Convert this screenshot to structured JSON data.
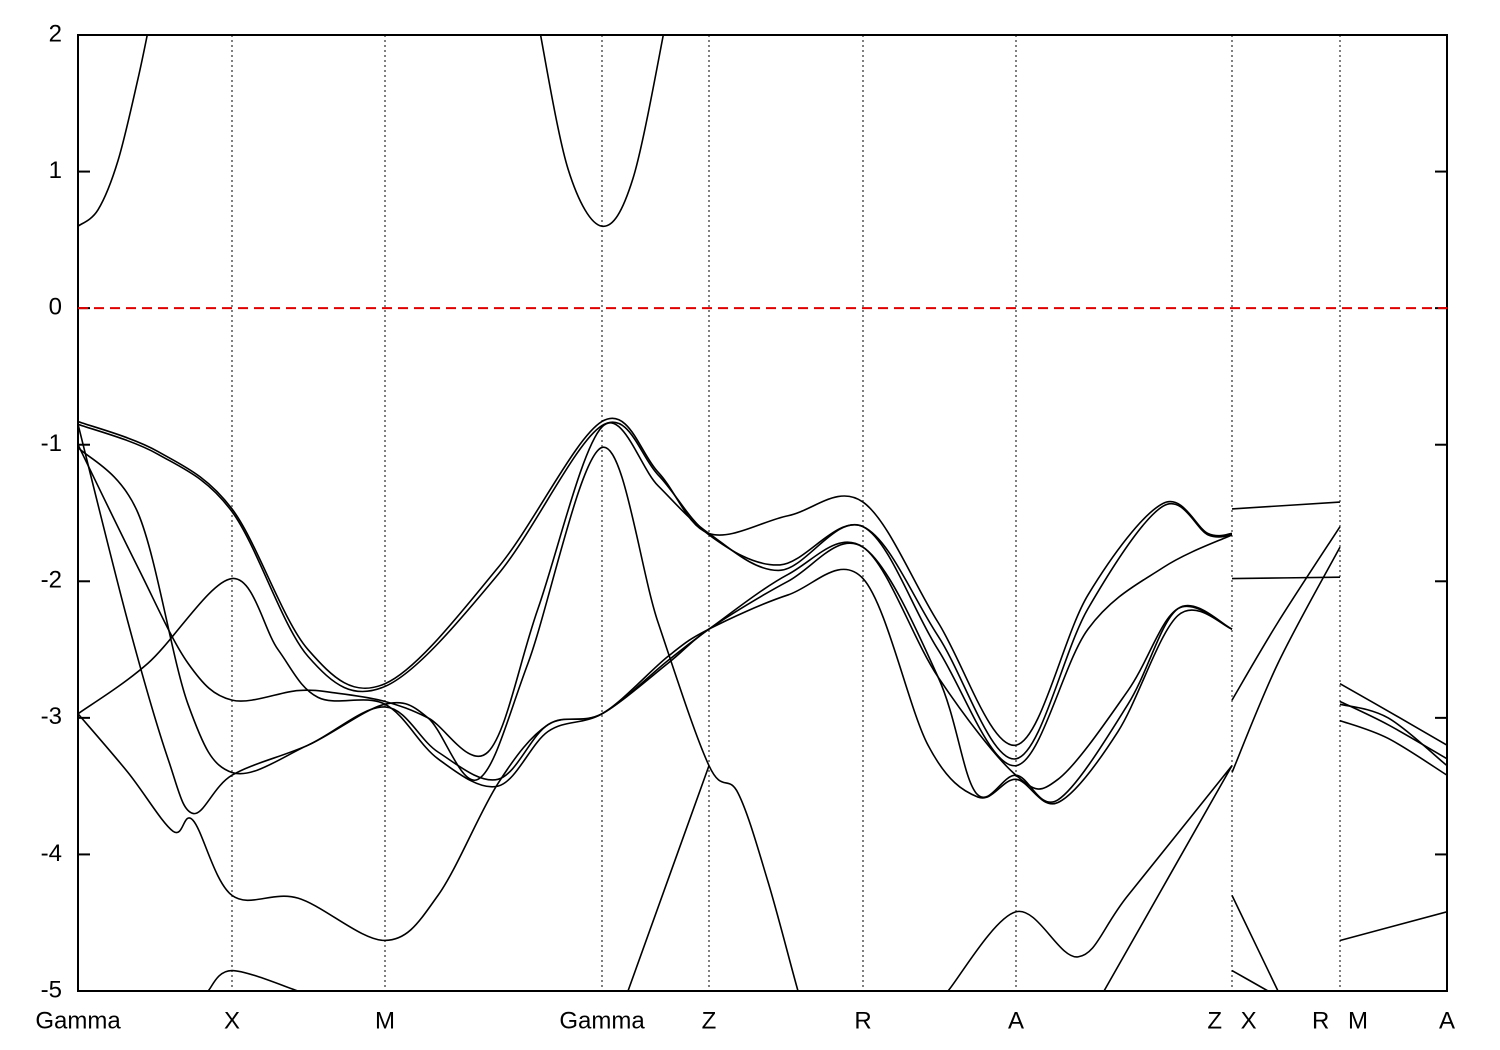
{
  "chart_data": {
    "type": "line",
    "xlim": [
      0,
      13.69
    ],
    "ylim": [
      -5,
      2
    ],
    "yticks": [
      -5,
      -4,
      -3,
      -2,
      -1,
      0,
      1,
      2
    ],
    "xticks": [
      {
        "value": 0,
        "label": "Gamma"
      },
      {
        "value": 1.54,
        "label": "X"
      },
      {
        "value": 3.07,
        "label": "M"
      },
      {
        "value": 5.24,
        "label": "Gamma"
      },
      {
        "value": 6.31,
        "label": "Z"
      },
      {
        "value": 7.85,
        "label": "R"
      },
      {
        "value": 9.38,
        "label": "A"
      },
      {
        "value": 11.54,
        "label": "Z X"
      },
      {
        "value": 12.62,
        "label": "R M"
      },
      {
        "value": 13.69,
        "label": "A"
      }
    ],
    "xgrid": true,
    "reference_line": {
      "y": 0,
      "color": "#e00000",
      "dashed": true
    },
    "series": [
      {
        "color": "#000000",
        "x": [
          0,
          0.2,
          0.4,
          0.6,
          0.72,
          null,
          4.6,
          4.9,
          5.24,
          5.55,
          5.88
        ],
        "values": [
          0.6,
          0.72,
          1.08,
          1.68,
          2.1,
          null,
          2.1,
          1.02,
          0.6,
          0.95,
          2.1
        ]
      },
      {
        "color": "#000000",
        "x": [
          0,
          0.8,
          1.54,
          2.3,
          3.07,
          4.2,
          5.24,
          5.8,
          6.31,
          7.1,
          7.85,
          8.6,
          9.38,
          10.1,
          10.85,
          11.3,
          11.54,
          null,
          11.54,
          12.62,
          null,
          12.62,
          13.1,
          13.69
        ],
        "values": [
          -0.83,
          -1.05,
          -1.47,
          -2.5,
          -2.75,
          -1.9,
          -0.83,
          -1.2,
          -1.65,
          -1.52,
          -1.42,
          -2.3,
          -3.2,
          -2.1,
          -1.43,
          -1.65,
          -1.65,
          null,
          -1.47,
          -1.42,
          null,
          -2.75,
          -2.95,
          -3.2
        ]
      },
      {
        "color": "#000000",
        "x": [
          0,
          0.8,
          1.54,
          2.3,
          3.07,
          4.2,
          5.24,
          5.8,
          6.31,
          7.02,
          7.85,
          8.6,
          9.38,
          10.1,
          10.85,
          11.3,
          11.54,
          null,
          11.54,
          12.62,
          null,
          12.62,
          13.1,
          13.69
        ],
        "values": [
          -0.85,
          -1.07,
          -1.49,
          -2.55,
          -2.77,
          -1.95,
          -0.86,
          -1.22,
          -1.66,
          -1.88,
          -1.6,
          -2.4,
          -3.3,
          -2.2,
          -1.45,
          -1.66,
          -1.66,
          null,
          -1.98,
          -1.97,
          null,
          -2.88,
          -3.05,
          -3.3
        ]
      },
      {
        "color": "#000000",
        "x": [
          0,
          0.6,
          1.1,
          1.54,
          2.2,
          2.6,
          3.07,
          3.5,
          4.1,
          4.6,
          5.24,
          5.8,
          6.31,
          7.02,
          7.85,
          8.6,
          9.38,
          10.1,
          10.85,
          11.54,
          null,
          11.54,
          12.0,
          12.62,
          null,
          12.62,
          13.1,
          13.69
        ],
        "values": [
          -1.0,
          -1.9,
          -2.6,
          -2.87,
          -2.8,
          -2.82,
          -2.88,
          -3.0,
          -3.25,
          -2.2,
          -0.87,
          -1.3,
          -1.65,
          -1.92,
          -1.6,
          -2.5,
          -3.35,
          -2.35,
          -1.9,
          -1.66,
          null,
          -2.87,
          -2.3,
          -1.6,
          null,
          -2.9,
          -3.0,
          -3.35
        ]
      },
      {
        "color": "#000000",
        "x": [
          0,
          0.6,
          1.1,
          1.54,
          2.3,
          3.07,
          3.5,
          4.0,
          4.5,
          5.24,
          5.8,
          6.31,
          6.6,
          6.9,
          7.2,
          7.4
        ],
        "values": [
          -1.02,
          -1.5,
          -2.9,
          -3.4,
          -3.2,
          -2.9,
          -3.0,
          -3.45,
          -2.6,
          -1.02,
          -2.3,
          -3.35,
          -3.55,
          -4.2,
          -5.0,
          -5.5
        ]
      },
      {
        "color": "#000000",
        "x": [
          0,
          0.7,
          1.54,
          2.0,
          2.4,
          3.07,
          3.6,
          4.2,
          4.7,
          5.24,
          5.9,
          6.31,
          7.1,
          7.85,
          8.6,
          8.98,
          9.38,
          9.8,
          10.5,
          11.0,
          11.54,
          null,
          11.54,
          12.0,
          12.62,
          null,
          12.62,
          13.1,
          13.69
        ],
        "values": [
          -2.97,
          -2.6,
          -1.98,
          -2.5,
          -2.85,
          -2.9,
          -3.3,
          -3.5,
          -3.1,
          -2.97,
          -2.6,
          -2.35,
          -2.0,
          -1.75,
          -2.7,
          -3.55,
          -3.42,
          -3.6,
          -2.9,
          -2.2,
          -2.35,
          null,
          -3.4,
          -2.6,
          -1.75,
          null,
          -3.02,
          -3.15,
          -3.42
        ]
      },
      {
        "color": "#000000",
        "x": [
          0,
          0.5,
          0.95,
          1.15,
          1.54,
          2.2,
          3.07,
          3.6,
          4.2,
          4.7,
          5.24,
          5.9,
          6.31,
          7.1,
          7.85,
          8.5,
          9.0,
          9.38,
          9.8,
          10.4,
          11.0,
          11.54
        ],
        "values": [
          -2.97,
          -3.4,
          -3.83,
          -3.75,
          -4.3,
          -4.32,
          -4.63,
          -4.3,
          -3.48,
          -3.05,
          -2.97,
          -2.55,
          -2.35,
          -2.1,
          -1.98,
          -3.2,
          -3.58,
          -3.45,
          -3.62,
          -3.1,
          -2.25,
          -2.35
        ]
      },
      {
        "color": "#000000",
        "x": [
          0,
          0.5,
          0.9,
          1.15,
          1.54,
          2.3,
          3.07,
          3.6,
          4.2,
          4.7,
          5.24,
          5.9,
          6.31,
          7.1,
          7.85,
          8.6,
          9.38,
          9.8,
          10.5,
          11.0,
          11.54
        ],
        "values": [
          -0.85,
          -2.3,
          -3.3,
          -3.7,
          -3.42,
          -3.2,
          -2.92,
          -3.25,
          -3.45,
          -3.05,
          -2.97,
          -2.58,
          -2.35,
          -1.95,
          -1.75,
          -2.7,
          -3.42,
          -3.45,
          -2.8,
          -2.2,
          -2.35
        ]
      },
      {
        "color": "#000000",
        "x": [
          1.3,
          1.54,
          2.2,
          null,
          5.5,
          6.31,
          null,
          8.7,
          9.38,
          10.0,
          10.5,
          11.54,
          null,
          10.26,
          11.54,
          null,
          11.54,
          12.0,
          null,
          11.54,
          11.9,
          null,
          12.62,
          13.69
        ],
        "values": [
          -5.0,
          -4.85,
          -5.0,
          null,
          -5.0,
          -3.35,
          null,
          -5.0,
          -4.42,
          -4.75,
          -4.3,
          -3.35,
          null,
          -5.0,
          -3.35,
          null,
          -4.3,
          -5.0,
          null,
          -4.85,
          -5.0,
          null,
          -4.63,
          -4.42
        ]
      }
    ]
  }
}
